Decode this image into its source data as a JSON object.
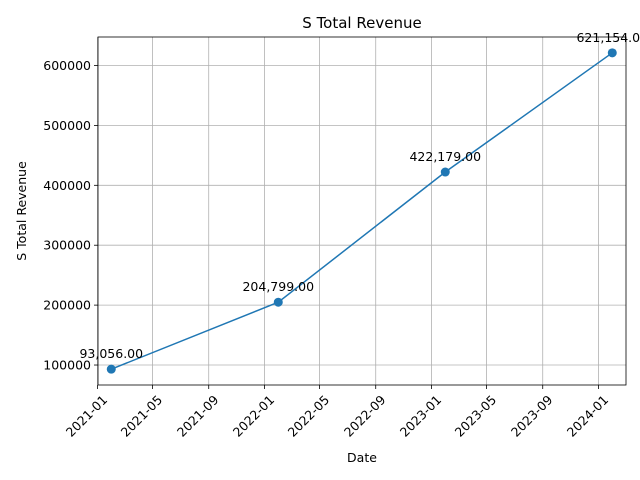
{
  "chart_data": {
    "type": "line",
    "title": "S Total Revenue",
    "xlabel": "Date",
    "ylabel": "S Total Revenue",
    "x": [
      "2021-01-31",
      "2022-01-31",
      "2023-01-31",
      "2024-01-31"
    ],
    "series": [
      {
        "values": [
          93056,
          204799,
          422179,
          621154
        ],
        "color": "#1f77b4"
      }
    ],
    "data_labels": [
      "93,056.00",
      "204,799.00",
      "422,179.00",
      "621,154.00"
    ],
    "xticks": [
      "2021-01",
      "2021-05",
      "2021-09",
      "2022-01",
      "2022-05",
      "2022-09",
      "2023-01",
      "2023-05",
      "2023-09",
      "2024-01"
    ],
    "yticks": [
      100000,
      200000,
      300000,
      400000,
      500000,
      600000
    ],
    "ylim": [
      66651,
      647559
    ],
    "xlim": [
      "2021-01-02",
      "2024-03-01"
    ],
    "grid": true,
    "marker": "circle"
  }
}
